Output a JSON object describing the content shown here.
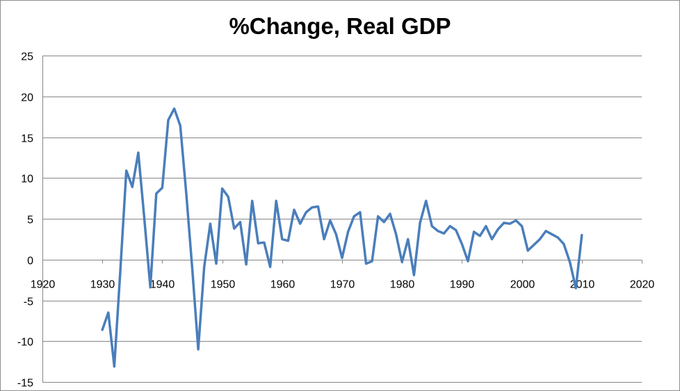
{
  "chart_data": {
    "type": "line",
    "title": "%Change, Real GDP",
    "xlabel": "",
    "ylabel": "",
    "xlim": [
      1920,
      2020
    ],
    "ylim": [
      -15,
      25
    ],
    "x_ticks": [
      1920,
      1930,
      1940,
      1950,
      1960,
      1970,
      1980,
      1990,
      2000,
      2010,
      2020
    ],
    "y_ticks": [
      -15,
      -10,
      -5,
      0,
      5,
      10,
      15,
      20,
      25
    ],
    "grid": "horizontal",
    "legend": "none",
    "line_color": "#4a7ebb",
    "gridline_color": "#868686",
    "series": [
      {
        "x": [
          1930,
          1931,
          1932,
          1933,
          1934,
          1935,
          1936,
          1937,
          1938,
          1939,
          1940,
          1941,
          1942,
          1943,
          1944,
          1945,
          1946,
          1947,
          1948,
          1949,
          1950,
          1951,
          1952,
          1953,
          1954,
          1955,
          1956,
          1957,
          1958,
          1959,
          1960,
          1961,
          1962,
          1963,
          1964,
          1965,
          1966,
          1967,
          1968,
          1969,
          1970,
          1971,
          1972,
          1973,
          1974,
          1975,
          1976,
          1977,
          1978,
          1979,
          1980,
          1981,
          1982,
          1983,
          1984,
          1985,
          1986,
          1987,
          1988,
          1989,
          1990,
          1991,
          1992,
          1993,
          1994,
          1995,
          1996,
          1997,
          1998,
          1999,
          2000,
          2001,
          2002,
          2003,
          2004,
          2005,
          2006,
          2007,
          2008,
          2009,
          2010
        ],
        "values": [
          -8.6,
          -6.5,
          -13.1,
          -1.3,
          10.9,
          8.9,
          13.1,
          5.1,
          -3.4,
          8.1,
          8.8,
          17.1,
          18.5,
          16.4,
          8.1,
          -1.1,
          -11.0,
          -0.9,
          4.4,
          -0.5,
          8.7,
          7.7,
          3.8,
          4.6,
          -0.6,
          7.2,
          2.0,
          2.1,
          -0.9,
          7.2,
          2.5,
          2.3,
          6.1,
          4.4,
          5.8,
          6.4,
          6.5,
          2.5,
          4.8,
          3.1,
          0.2,
          3.4,
          5.3,
          5.8,
          -0.5,
          -0.2,
          5.3,
          4.6,
          5.6,
          3.1,
          -0.3,
          2.5,
          -1.9,
          4.5,
          7.2,
          4.1,
          3.5,
          3.2,
          4.1,
          3.6,
          1.9,
          -0.2,
          3.4,
          2.9,
          4.1,
          2.5,
          3.7,
          4.5,
          4.4,
          4.8,
          4.1,
          1.1,
          1.8,
          2.5,
          3.5,
          3.1,
          2.7,
          1.9,
          -0.3,
          -3.5,
          3.0
        ]
      }
    ]
  }
}
